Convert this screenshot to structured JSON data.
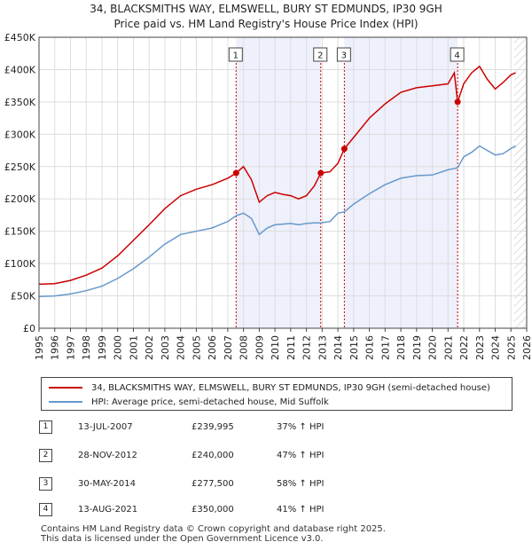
{
  "title": "34, BLACKSMITHS WAY, ELMSWELL, BURY ST EDMUNDS, IP30 9GH",
  "subtitle": "Price paid vs. HM Land Registry's House Price Index (HPI)",
  "colors": {
    "property": "#cc0000",
    "hpi": "#6699cc",
    "shade": "#eef0fb",
    "marker_line": "#cc0000"
  },
  "chart_data": {
    "type": "line",
    "xlim": [
      1995,
      2026
    ],
    "ylim": [
      0,
      450000
    ],
    "x_ticks": [
      "1995",
      "1996",
      "1997",
      "1998",
      "1999",
      "2000",
      "2001",
      "2002",
      "2003",
      "2004",
      "2005",
      "2006",
      "2007",
      "2008",
      "2009",
      "2010",
      "2011",
      "2012",
      "2013",
      "2014",
      "2015",
      "2016",
      "2017",
      "2018",
      "2019",
      "2020",
      "2021",
      "2022",
      "2023",
      "2024",
      "2025",
      "2026"
    ],
    "y_ticks": [
      {
        "value": 0,
        "label": "£0"
      },
      {
        "value": 50000,
        "label": "£50K"
      },
      {
        "value": 100000,
        "label": "£100K"
      },
      {
        "value": 150000,
        "label": "£150K"
      },
      {
        "value": 200000,
        "label": "£200K"
      },
      {
        "value": 250000,
        "label": "£250K"
      },
      {
        "value": 300000,
        "label": "£300K"
      },
      {
        "value": 350000,
        "label": "£350K"
      },
      {
        "value": 400000,
        "label": "£400K"
      },
      {
        "value": 450000,
        "label": "£450K"
      }
    ],
    "shaded_ranges": [
      [
        2007.53,
        2012.91
      ],
      [
        2014.41,
        2021.61
      ]
    ],
    "projection_from": 2025.2,
    "series": [
      {
        "name": "34, BLACKSMITHS WAY, ELMSWELL, BURY ST EDMUNDS, IP30 9GH (semi-detached house)",
        "x": [
          1995,
          1996,
          1997,
          1998,
          1999,
          2000,
          2001,
          2002,
          2003,
          2004,
          2005,
          2006,
          2007,
          2007.53,
          2008,
          2008.5,
          2009,
          2009.5,
          2010,
          2010.5,
          2011,
          2011.5,
          2012,
          2012.5,
          2012.91,
          2013.5,
          2014,
          2014.41,
          2015,
          2016,
          2017,
          2018,
          2019,
          2020,
          2021,
          2021.4,
          2021.61,
          2022,
          2022.5,
          2023,
          2023.5,
          2024,
          2024.5,
          2025,
          2025.3
        ],
        "values": [
          68000,
          69000,
          74000,
          82000,
          93000,
          112000,
          136000,
          160000,
          185000,
          205000,
          215000,
          222000,
          232000,
          239995,
          250000,
          230000,
          195000,
          205000,
          210000,
          207000,
          205000,
          200000,
          205000,
          220000,
          240000,
          242000,
          255000,
          277500,
          295000,
          325000,
          347000,
          365000,
          372000,
          375000,
          378000,
          395000,
          350000,
          378000,
          395000,
          405000,
          385000,
          370000,
          380000,
          392000,
          395000
        ]
      },
      {
        "name": "HPI: Average price, semi-detached house, Mid Suffolk",
        "x": [
          1995,
          1996,
          1997,
          1998,
          1999,
          2000,
          2001,
          2002,
          2003,
          2004,
          2005,
          2006,
          2007,
          2007.53,
          2008,
          2008.5,
          2009,
          2009.5,
          2010,
          2010.5,
          2011,
          2011.5,
          2012,
          2012.5,
          2012.91,
          2013.5,
          2014,
          2014.41,
          2015,
          2016,
          2017,
          2018,
          2019,
          2020,
          2021,
          2021.61,
          2022,
          2022.5,
          2023,
          2023.5,
          2024,
          2024.5,
          2025,
          2025.3
        ],
        "values": [
          49000,
          50000,
          53000,
          58000,
          65000,
          77000,
          92000,
          110000,
          130000,
          145000,
          150000,
          155000,
          165000,
          174000,
          178000,
          170000,
          145000,
          155000,
          160000,
          161000,
          162000,
          160000,
          162000,
          163000,
          163000,
          165000,
          178000,
          180000,
          192000,
          208000,
          222000,
          232000,
          236000,
          237000,
          245000,
          248000,
          265000,
          272000,
          282000,
          275000,
          268000,
          270000,
          278000,
          282000
        ]
      }
    ],
    "sales": [
      {
        "num": "1",
        "x": 2007.53,
        "value": 239995
      },
      {
        "num": "2",
        "x": 2012.91,
        "value": 240000
      },
      {
        "num": "3",
        "x": 2014.41,
        "value": 277500
      },
      {
        "num": "4",
        "x": 2021.61,
        "value": 350000
      }
    ]
  },
  "legend": {
    "property": "34, BLACKSMITHS WAY, ELMSWELL, BURY ST EDMUNDS, IP30 9GH (semi-detached house)",
    "hpi": "HPI: Average price, semi-detached house, Mid Suffolk"
  },
  "sales_table": [
    {
      "num": "1",
      "date": "13-JUL-2007",
      "price": "£239,995",
      "hpi": "37% ↑ HPI"
    },
    {
      "num": "2",
      "date": "28-NOV-2012",
      "price": "£240,000",
      "hpi": "47% ↑ HPI"
    },
    {
      "num": "3",
      "date": "30-MAY-2014",
      "price": "£277,500",
      "hpi": "58% ↑ HPI"
    },
    {
      "num": "4",
      "date": "13-AUG-2021",
      "price": "£350,000",
      "hpi": "41% ↑ HPI"
    }
  ],
  "footer": {
    "line1": "Contains HM Land Registry data © Crown copyright and database right 2025.",
    "line2": "This data is licensed under the Open Government Licence v3.0."
  }
}
